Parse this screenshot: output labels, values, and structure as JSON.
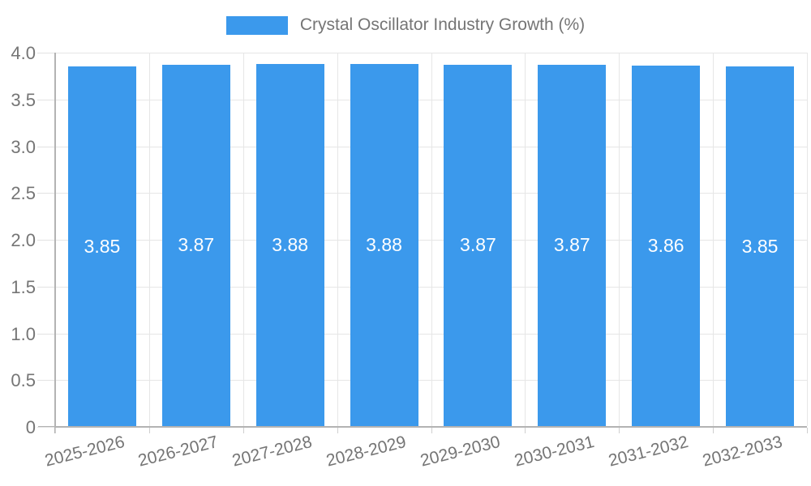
{
  "legend": {
    "label": "Crystal Oscillator Industry Growth (%)"
  },
  "chart_data": {
    "type": "bar",
    "title": "Crystal Oscillator Industry Growth (%)",
    "categories": [
      "2025-2026",
      "2026-2027",
      "2027-2028",
      "2028-2029",
      "2029-2030",
      "2030-2031",
      "2031-2032",
      "2032-2033"
    ],
    "values": [
      3.85,
      3.87,
      3.88,
      3.88,
      3.87,
      3.87,
      3.86,
      3.85
    ],
    "bar_labels": [
      "3.85",
      "3.87",
      "3.88",
      "3.88",
      "3.87",
      "3.87",
      "3.86",
      "3.85"
    ],
    "xlabel": "",
    "ylabel": "",
    "ylim": [
      0,
      4
    ],
    "yticks": [
      {
        "value": 4.0,
        "label": "4.0"
      },
      {
        "value": 3.5,
        "label": "3.5"
      },
      {
        "value": 3.0,
        "label": "3.0"
      },
      {
        "value": 2.5,
        "label": "2.5"
      },
      {
        "value": 2.0,
        "label": "2.0"
      },
      {
        "value": 1.5,
        "label": "1.5"
      },
      {
        "value": 1.0,
        "label": "1.0"
      },
      {
        "value": 0.5,
        "label": "0.5"
      },
      {
        "value": 0,
        "label": "0"
      }
    ],
    "grid": true,
    "legend_position": "top-center",
    "colors": {
      "bar": "#3B99EC",
      "bar_label": "#FFFFFF",
      "axis_text": "#757575",
      "gridline": "#E6E6E6",
      "axis_line": "#B3B3B3",
      "background": "#FFFFFF"
    }
  }
}
